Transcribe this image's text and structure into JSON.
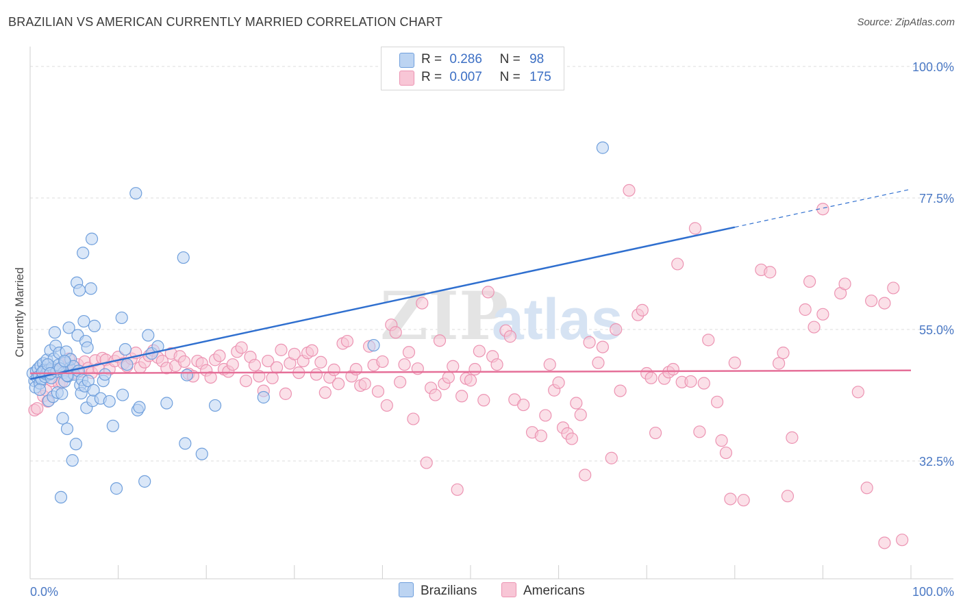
{
  "title": "BRAZILIAN VS AMERICAN CURRENTLY MARRIED CORRELATION CHART",
  "source": "Source: ZipAtlas.com",
  "watermark": {
    "zip": "ZIP",
    "atlas": "atlas"
  },
  "legend": {
    "rows": [
      {
        "r_label": "R =",
        "r_value": "0.286",
        "n_label": "N =",
        "n_value": "98"
      },
      {
        "r_label": "R =",
        "r_value": "0.007",
        "n_label": "N =",
        "n_value": "175"
      }
    ]
  },
  "bottom_legend": {
    "brazilians": "Brazilians",
    "americans": "Americans"
  },
  "colors": {
    "brazilians_fill": "#bcd4f2",
    "brazilians_stroke": "#6f9fdc",
    "brazilians_line": "#2f6fcf",
    "americans_fill": "#f8c6d6",
    "americans_stroke": "#ec93b2",
    "americans_line": "#e56f98",
    "grid": "#dcdcdc",
    "tick_text": "#4a78c4"
  },
  "chart_data": {
    "type": "scatter",
    "title": "BRAZILIAN VS AMERICAN CURRENTLY MARRIED CORRELATION CHART",
    "xlabel": "",
    "ylabel": "Currently Married",
    "xlim": [
      0,
      100
    ],
    "ylim": [
      10,
      100
    ],
    "x_tick_labels": [
      "0.0%",
      "100.0%"
    ],
    "y_ticks": [
      32.5,
      55.0,
      77.5,
      100.0
    ],
    "y_tick_labels": [
      "32.5%",
      "55.0%",
      "77.5%",
      "100.0%"
    ],
    "grid": true,
    "legend_position": "top-center",
    "series": [
      {
        "name": "Brazilians",
        "R": 0.286,
        "N": 98,
        "trend": {
          "x0": 0,
          "y0": 46.5,
          "x1": 80,
          "y1": 72.5,
          "dashed_to_x": 100,
          "dashed_to_y": 79.0
        },
        "points": [
          [
            0.3,
            47.5
          ],
          [
            0.5,
            46.2
          ],
          [
            0.6,
            45.1
          ],
          [
            0.7,
            47.9
          ],
          [
            0.8,
            46.8
          ],
          [
            0.9,
            48.3
          ],
          [
            1.0,
            47.0
          ],
          [
            1.1,
            45.8
          ],
          [
            1.2,
            48.8
          ],
          [
            1.3,
            46.5
          ],
          [
            1.4,
            47.6
          ],
          [
            1.5,
            49.2
          ],
          [
            1.6,
            48.1
          ],
          [
            1.7,
            46.9
          ],
          [
            1.8,
            47.4
          ],
          [
            1.9,
            49.8
          ],
          [
            2.0,
            48.0
          ],
          [
            2.1,
            42.8
          ],
          [
            2.2,
            47.3
          ],
          [
            2.3,
            51.4
          ],
          [
            2.4,
            46.7
          ],
          [
            2.5,
            48.5
          ],
          [
            2.6,
            43.5
          ],
          [
            2.7,
            50.0
          ],
          [
            2.8,
            54.5
          ],
          [
            2.9,
            52.2
          ],
          [
            3.0,
            47.8
          ],
          [
            3.1,
            44.2
          ],
          [
            3.2,
            48.9
          ],
          [
            3.3,
            51.0
          ],
          [
            3.5,
            26.3
          ],
          [
            3.6,
            44.0
          ],
          [
            3.7,
            39.8
          ],
          [
            3.8,
            47.6
          ],
          [
            3.9,
            46.1
          ],
          [
            4.0,
            49.5
          ],
          [
            4.1,
            51.2
          ],
          [
            4.2,
            38.0
          ],
          [
            4.3,
            47.0
          ],
          [
            4.4,
            55.3
          ],
          [
            4.5,
            48.4
          ],
          [
            4.6,
            49.9
          ],
          [
            4.8,
            32.6
          ],
          [
            4.9,
            48.7
          ],
          [
            5.0,
            47.3
          ],
          [
            5.2,
            35.4
          ],
          [
            5.3,
            63.0
          ],
          [
            5.4,
            54.0
          ],
          [
            5.5,
            47.9
          ],
          [
            5.6,
            61.7
          ],
          [
            5.7,
            45.5
          ],
          [
            5.8,
            44.1
          ],
          [
            5.9,
            46.4
          ],
          [
            6.0,
            68.1
          ],
          [
            6.1,
            56.4
          ],
          [
            6.2,
            45.3
          ],
          [
            6.3,
            53.0
          ],
          [
            6.4,
            41.6
          ],
          [
            6.5,
            51.9
          ],
          [
            6.6,
            46.2
          ],
          [
            6.9,
            62.0
          ],
          [
            7.0,
            70.5
          ],
          [
            7.1,
            42.8
          ],
          [
            7.2,
            44.6
          ],
          [
            7.3,
            55.6
          ],
          [
            8.0,
            43.2
          ],
          [
            8.3,
            46.2
          ],
          [
            8.5,
            47.3
          ],
          [
            9.0,
            42.7
          ],
          [
            9.4,
            38.5
          ],
          [
            9.8,
            27.8
          ],
          [
            10.5,
            43.8
          ],
          [
            10.4,
            57.0
          ],
          [
            10.8,
            51.6
          ],
          [
            11.0,
            49.0
          ],
          [
            12.0,
            78.3
          ],
          [
            12.2,
            41.2
          ],
          [
            12.4,
            41.7
          ],
          [
            13.0,
            29.0
          ],
          [
            13.4,
            54.0
          ],
          [
            13.8,
            50.9
          ],
          [
            14.5,
            52.1
          ],
          [
            15.5,
            42.4
          ],
          [
            17.4,
            67.3
          ],
          [
            17.6,
            35.5
          ],
          [
            17.8,
            47.2
          ],
          [
            19.5,
            33.7
          ],
          [
            21.0,
            42.0
          ],
          [
            26.5,
            43.4
          ],
          [
            39.0,
            52.3
          ],
          [
            65.0,
            86.1
          ],
          [
            1.1,
            44.7
          ],
          [
            1.4,
            47.7
          ],
          [
            2.0,
            49.0
          ],
          [
            2.3,
            47.5
          ],
          [
            3.4,
            48.3
          ],
          [
            3.9,
            49.6
          ],
          [
            4.2,
            47.1
          ]
        ]
      },
      {
        "name": "Americans",
        "R": 0.007,
        "N": 175,
        "trend": {
          "x0": 0,
          "y0": 47.5,
          "x1": 100,
          "y1": 48.0
        },
        "points": [
          [
            0.5,
            41.2
          ],
          [
            0.8,
            41.5
          ],
          [
            1.5,
            43.6
          ],
          [
            1.8,
            44.6
          ],
          [
            2.0,
            42.7
          ],
          [
            2.5,
            46.2
          ],
          [
            3.0,
            48.1
          ],
          [
            3.3,
            45.7
          ],
          [
            3.6,
            46.0
          ],
          [
            4.0,
            49.3
          ],
          [
            4.4,
            50.0
          ],
          [
            4.8,
            47.5
          ],
          [
            5.0,
            48.6
          ],
          [
            5.4,
            49.0
          ],
          [
            5.8,
            47.8
          ],
          [
            6.2,
            49.5
          ],
          [
            6.6,
            48.4
          ],
          [
            7.0,
            47.6
          ],
          [
            7.4,
            49.7
          ],
          [
            7.8,
            48.3
          ],
          [
            8.2,
            50.1
          ],
          [
            8.6,
            49.8
          ],
          [
            9.0,
            48.2
          ],
          [
            9.6,
            49.6
          ],
          [
            10.0,
            50.3
          ],
          [
            10.6,
            49.2
          ],
          [
            11.0,
            48.7
          ],
          [
            11.5,
            50.0
          ],
          [
            12.0,
            51.0
          ],
          [
            12.5,
            48.5
          ],
          [
            13.0,
            49.4
          ],
          [
            13.5,
            50.5
          ],
          [
            14.0,
            51.4
          ],
          [
            14.5,
            50.2
          ],
          [
            15.0,
            49.6
          ],
          [
            15.5,
            48.4
          ],
          [
            16.0,
            50.9
          ],
          [
            16.5,
            48.8
          ],
          [
            17.0,
            50.4
          ],
          [
            17.5,
            49.5
          ],
          [
            18.0,
            47.4
          ],
          [
            18.5,
            47.0
          ],
          [
            19.0,
            49.6
          ],
          [
            19.5,
            49.2
          ],
          [
            20.0,
            48.0
          ],
          [
            20.5,
            46.8
          ],
          [
            21.0,
            49.8
          ],
          [
            21.5,
            50.5
          ],
          [
            22.0,
            48.2
          ],
          [
            22.5,
            47.8
          ],
          [
            23.0,
            49.0
          ],
          [
            23.5,
            51.2
          ],
          [
            24.0,
            51.9
          ],
          [
            24.5,
            46.2
          ],
          [
            25.0,
            50.3
          ],
          [
            25.5,
            48.9
          ],
          [
            26.0,
            47.0
          ],
          [
            26.5,
            44.5
          ],
          [
            27.0,
            49.6
          ],
          [
            27.5,
            46.7
          ],
          [
            28.0,
            48.5
          ],
          [
            28.5,
            51.5
          ],
          [
            29.0,
            44.0
          ],
          [
            29.5,
            49.2
          ],
          [
            30.0,
            50.8
          ],
          [
            30.5,
            47.6
          ],
          [
            31.0,
            49.6
          ],
          [
            31.5,
            51.0
          ],
          [
            32.0,
            51.4
          ],
          [
            32.5,
            47.3
          ],
          [
            33.0,
            49.4
          ],
          [
            33.5,
            44.2
          ],
          [
            34.0,
            46.8
          ],
          [
            34.5,
            48.1
          ],
          [
            35.0,
            45.7
          ],
          [
            35.5,
            52.6
          ],
          [
            36.0,
            53.0
          ],
          [
            36.5,
            47.0
          ],
          [
            37.0,
            48.2
          ],
          [
            37.5,
            45.4
          ],
          [
            38.0,
            45.7
          ],
          [
            38.5,
            52.1
          ],
          [
            39.0,
            48.9
          ],
          [
            39.5,
            44.4
          ],
          [
            40.0,
            49.5
          ],
          [
            40.5,
            42.0
          ],
          [
            41.0,
            55.8
          ],
          [
            41.5,
            54.5
          ],
          [
            42.0,
            46.0
          ],
          [
            42.5,
            49.0
          ],
          [
            43.0,
            51.1
          ],
          [
            43.5,
            39.7
          ],
          [
            44.0,
            48.3
          ],
          [
            44.5,
            59.5
          ],
          [
            45.0,
            32.2
          ],
          [
            45.5,
            45.0
          ],
          [
            46.0,
            43.8
          ],
          [
            46.5,
            53.1
          ],
          [
            47.0,
            45.7
          ],
          [
            47.5,
            46.8
          ],
          [
            48.0,
            48.7
          ],
          [
            48.5,
            27.6
          ],
          [
            49.0,
            43.6
          ],
          [
            49.5,
            46.6
          ],
          [
            50.0,
            46.3
          ],
          [
            50.5,
            48.2
          ],
          [
            51.0,
            51.3
          ],
          [
            51.5,
            42.9
          ],
          [
            52.0,
            61.4
          ],
          [
            52.5,
            50.4
          ],
          [
            53.0,
            49.0
          ],
          [
            54.0,
            54.8
          ],
          [
            54.5,
            53.8
          ],
          [
            55.0,
            43.0
          ],
          [
            56.0,
            42.1
          ],
          [
            57.0,
            37.4
          ],
          [
            58.0,
            36.8
          ],
          [
            58.5,
            40.3
          ],
          [
            59.0,
            49.0
          ],
          [
            59.5,
            44.6
          ],
          [
            60.0,
            45.9
          ],
          [
            60.5,
            38.2
          ],
          [
            61.0,
            37.2
          ],
          [
            61.5,
            36.3
          ],
          [
            62.0,
            42.4
          ],
          [
            62.5,
            40.4
          ],
          [
            63.0,
            30.1
          ],
          [
            63.5,
            52.8
          ],
          [
            64.5,
            49.3
          ],
          [
            65.0,
            52.0
          ],
          [
            66.0,
            33.0
          ],
          [
            66.5,
            55.0
          ],
          [
            67.0,
            44.5
          ],
          [
            68.0,
            78.8
          ],
          [
            69.0,
            57.5
          ],
          [
            69.5,
            58.3
          ],
          [
            70.0,
            47.5
          ],
          [
            70.5,
            46.7
          ],
          [
            71.0,
            37.3
          ],
          [
            72.0,
            46.6
          ],
          [
            72.5,
            47.7
          ],
          [
            73.0,
            48.2
          ],
          [
            73.5,
            66.2
          ],
          [
            74.0,
            46.0
          ],
          [
            75.0,
            46.1
          ],
          [
            76.0,
            37.5
          ],
          [
            76.5,
            45.8
          ],
          [
            77.0,
            53.2
          ],
          [
            78.0,
            42.6
          ],
          [
            78.5,
            36.0
          ],
          [
            79.0,
            33.9
          ],
          [
            79.5,
            26.0
          ],
          [
            80.0,
            49.3
          ],
          [
            81.0,
            25.8
          ],
          [
            83.0,
            65.2
          ],
          [
            84.0,
            64.8
          ],
          [
            85.0,
            49.2
          ],
          [
            85.5,
            51.0
          ],
          [
            86.0,
            26.5
          ],
          [
            86.5,
            36.5
          ],
          [
            88.0,
            58.4
          ],
          [
            88.5,
            63.2
          ],
          [
            89.0,
            55.4
          ],
          [
            90.0,
            57.6
          ],
          [
            92.0,
            61.2
          ],
          [
            92.5,
            62.8
          ],
          [
            94.0,
            44.3
          ],
          [
            95.5,
            59.9
          ],
          [
            97.0,
            59.5
          ],
          [
            98.0,
            62.1
          ],
          [
            75.5,
            72.3
          ],
          [
            90.0,
            75.6
          ],
          [
            95.0,
            27.9
          ],
          [
            97.0,
            18.5
          ],
          [
            99.0,
            19.0
          ]
        ]
      }
    ]
  }
}
